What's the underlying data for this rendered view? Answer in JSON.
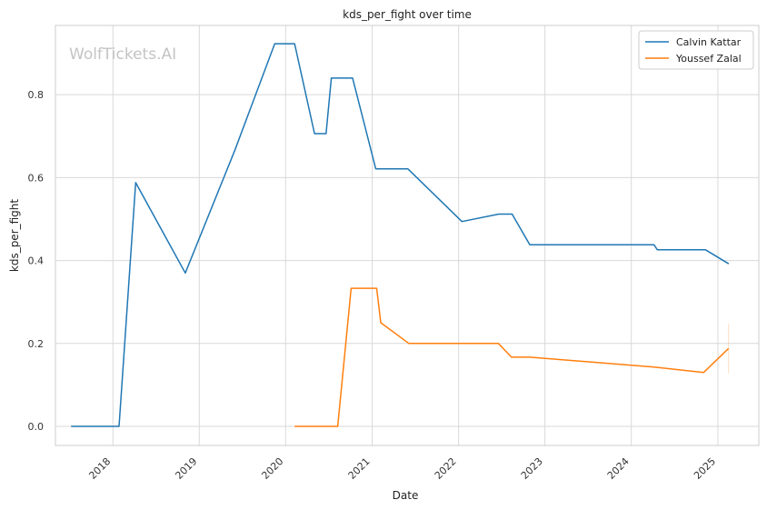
{
  "chart_data": {
    "type": "line",
    "title": "kds_per_fight over time",
    "xlabel": "Date",
    "ylabel": "kds_per_fight",
    "watermark": "WolfTickets.AI",
    "x_ticks": [
      "2018",
      "2019",
      "2020",
      "2021",
      "2022",
      "2023",
      "2024",
      "2025"
    ],
    "y_ticks": [
      "0.0",
      "0.2",
      "0.4",
      "0.6",
      "0.8"
    ],
    "xlim": [
      "2017-05-03",
      "2025-06-23"
    ],
    "ylim": [
      -0.046,
      0.967
    ],
    "grid": true,
    "legend_position": "top-right",
    "series": [
      {
        "name": "Calvin Kattar",
        "color": "#1f77b4",
        "points": [
          [
            "2017-07-08",
            0.0
          ],
          [
            "2018-01-27",
            0.0
          ],
          [
            "2018-04-07",
            0.588
          ],
          [
            "2018-11-03",
            0.37
          ],
          [
            "2019-06-01",
            0.667
          ],
          [
            "2019-11-16",
            0.923
          ],
          [
            "2020-02-08",
            0.923
          ],
          [
            "2020-05-02",
            0.706
          ],
          [
            "2020-06-20",
            0.706
          ],
          [
            "2020-07-12",
            0.84
          ],
          [
            "2020-10-10",
            0.84
          ],
          [
            "2021-01-16",
            0.621
          ],
          [
            "2021-06-01",
            0.621
          ],
          [
            "2022-01-15",
            0.494
          ],
          [
            "2022-06-20",
            0.512
          ],
          [
            "2022-08-15",
            0.512
          ],
          [
            "2022-10-29",
            0.438
          ],
          [
            "2024-04-06",
            0.438
          ],
          [
            "2024-04-20",
            0.426
          ],
          [
            "2024-11-09",
            0.426
          ],
          [
            "2025-02-16",
            0.392
          ]
        ]
      },
      {
        "name": "Youssef Zalal",
        "color": "#ff7f0e",
        "points": [
          [
            "2020-02-08",
            0.0
          ],
          [
            "2020-08-08",
            0.0
          ],
          [
            "2020-10-04",
            0.333
          ],
          [
            "2021-01-20",
            0.333
          ],
          [
            "2021-02-06",
            0.25
          ],
          [
            "2021-06-05",
            0.2
          ],
          [
            "2022-06-18",
            0.2
          ],
          [
            "2022-08-13",
            0.167
          ],
          [
            "2022-10-29",
            0.167
          ],
          [
            "2024-04-06",
            0.143
          ],
          [
            "2024-11-02",
            0.13
          ],
          [
            "2025-02-15",
            0.188
          ]
        ]
      }
    ]
  }
}
